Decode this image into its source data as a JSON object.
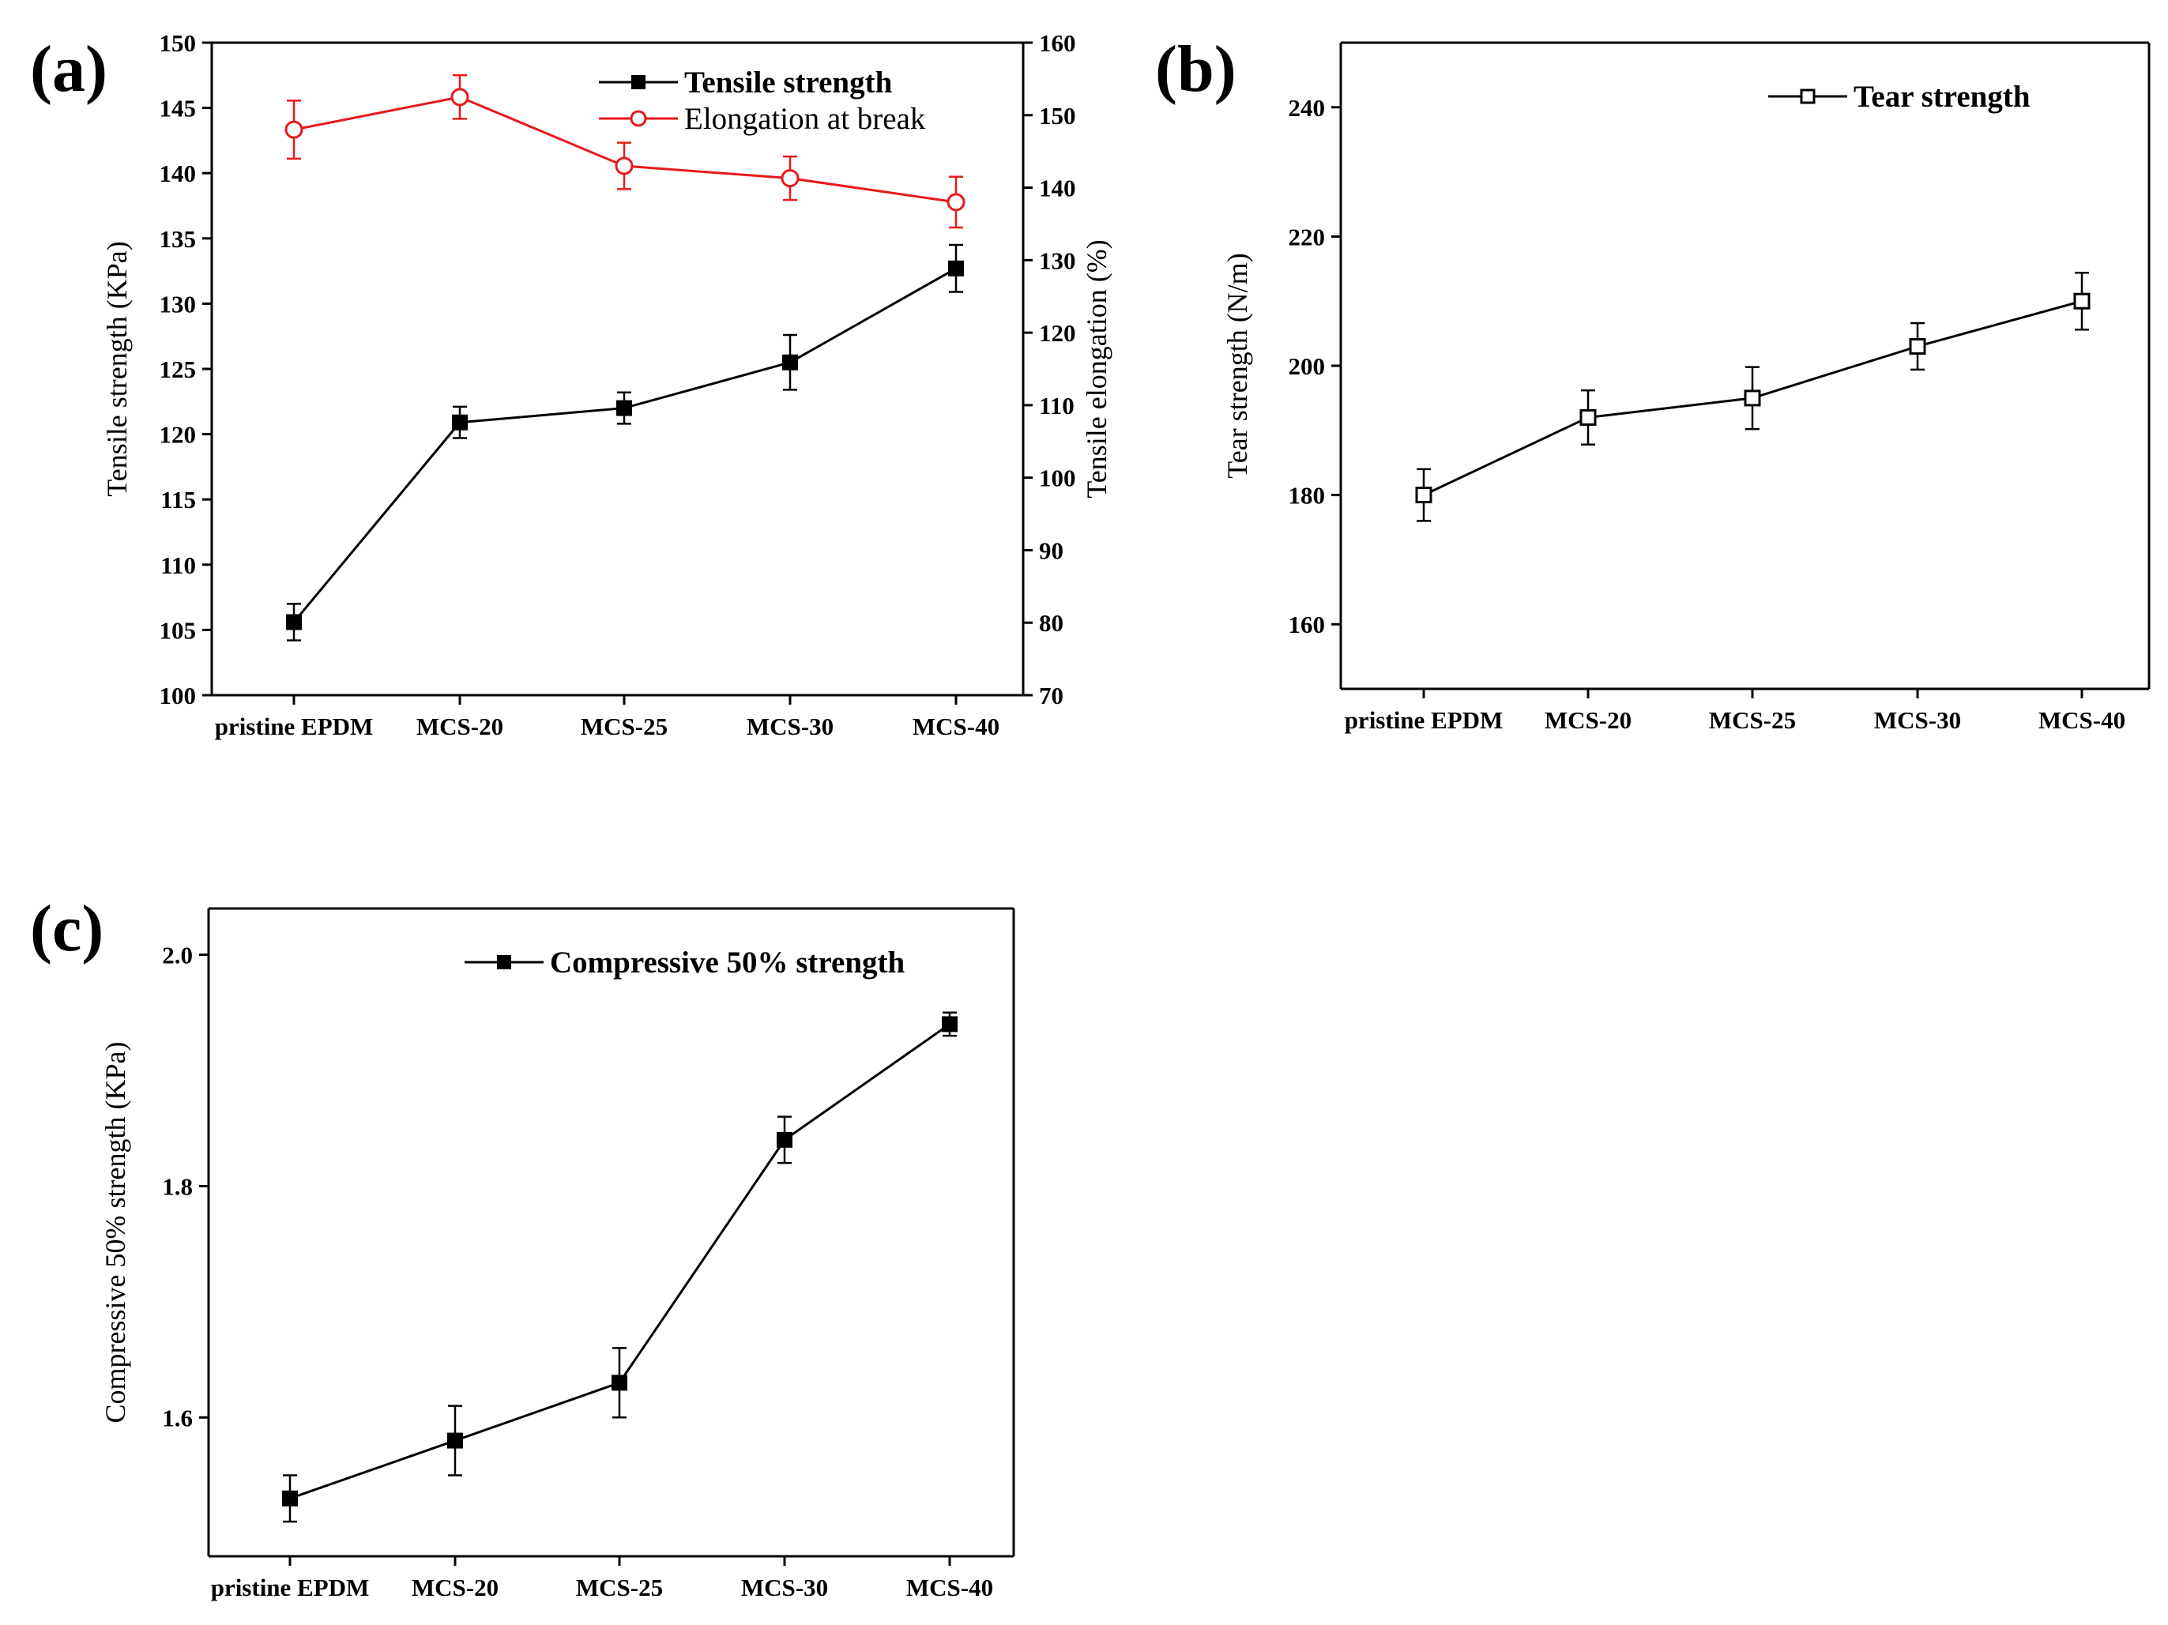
{
  "panels": [
    {
      "id": "a",
      "label": "(a)",
      "chart_data": {
        "type": "line",
        "categories": [
          "pristine EPDM",
          "MCS-20",
          "MCS-25",
          "MCS-30",
          "MCS-40"
        ],
        "series": [
          {
            "name": "Tensile strength",
            "axis": "left",
            "values": [
              105.6,
              120.9,
              122.0,
              125.5,
              132.7
            ],
            "errors": [
              1.4,
              1.2,
              1.2,
              2.1,
              1.8
            ],
            "color": "#000000",
            "marker": "filled-square"
          },
          {
            "name": "Elongation at break",
            "axis": "right",
            "values": [
              148.0,
              152.5,
              143.0,
              141.3,
              138.0
            ],
            "errors": [
              4.0,
              3.0,
              3.2,
              3.0,
              3.5
            ],
            "color": "#e8191c",
            "marker": "open-circle"
          }
        ],
        "ylabel": "Tensile strength (KPa)",
        "ylim": [
          100,
          150
        ],
        "yticks": [
          100,
          105,
          110,
          115,
          120,
          125,
          130,
          135,
          140,
          145,
          150
        ],
        "y2label": "Tensile elongation (%)",
        "y2lim": [
          70,
          160
        ],
        "y2ticks": [
          70,
          80,
          90,
          100,
          110,
          120,
          130,
          140,
          150,
          160
        ],
        "legend": "top-right",
        "grid": false
      }
    },
    {
      "id": "b",
      "label": "(b)",
      "chart_data": {
        "type": "line",
        "categories": [
          "pristine EPDM",
          "MCS-20",
          "MCS-25",
          "MCS-30",
          "MCS-40"
        ],
        "series": [
          {
            "name": "Tear strength",
            "axis": "left",
            "values": [
              180,
              192,
              195,
              203,
              210
            ],
            "errors": [
              4.0,
              4.2,
              4.8,
              3.6,
              4.4
            ],
            "color": "#000000",
            "marker": "open-square"
          }
        ],
        "ylabel": "Tear strength (N/m)",
        "ylim": [
          150,
          250
        ],
        "yticks": [
          160,
          180,
          200,
          220,
          240
        ],
        "legend": "top-right",
        "grid": false
      }
    },
    {
      "id": "c",
      "label": "(c)",
      "chart_data": {
        "type": "line",
        "categories": [
          "pristine EPDM",
          "MCS-20",
          "MCS-25",
          "MCS-30",
          "MCS-40"
        ],
        "series": [
          {
            "name": "Compressive 50% strength",
            "axis": "left",
            "values": [
              1.53,
              1.58,
              1.63,
              1.84,
              1.94
            ],
            "errors": [
              0.02,
              0.03,
              0.03,
              0.02,
              0.01
            ],
            "color": "#000000",
            "marker": "filled-square"
          }
        ],
        "ylabel": "Compressive 50% strength (KPa)",
        "ylim": [
          1.48,
          2.04
        ],
        "yticks": [
          "1.6",
          "1.8",
          "2.0"
        ],
        "legend": "top-right",
        "grid": false
      }
    }
  ]
}
